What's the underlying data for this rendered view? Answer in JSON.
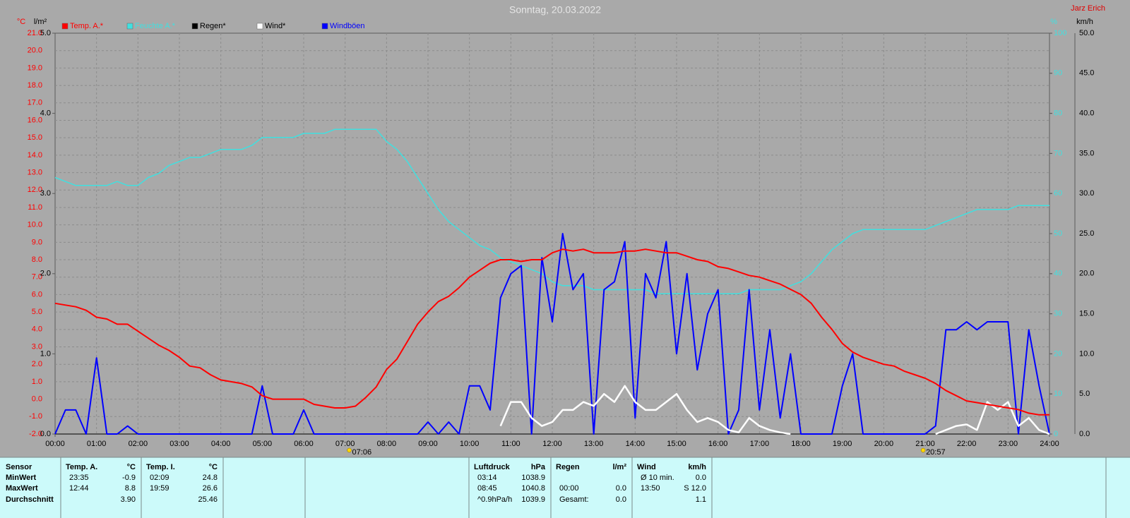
{
  "title": "Sonntag, 20.03.2022",
  "author": "Jarz Erich",
  "chart_data": {
    "type": "line",
    "xlim": [
      0,
      24
    ],
    "xticks": [
      {
        "value": 0,
        "label": "00:00"
      },
      {
        "value": 1,
        "label": "01:00"
      },
      {
        "value": 2,
        "label": "02:00"
      },
      {
        "value": 3,
        "label": "03:00"
      },
      {
        "value": 4,
        "label": "04:00"
      },
      {
        "value": 5,
        "label": "05:00"
      },
      {
        "value": 6,
        "label": "06:00"
      },
      {
        "value": 7,
        "label": "07:00"
      },
      {
        "value": 8,
        "label": "08:00"
      },
      {
        "value": 9,
        "label": "09:00"
      },
      {
        "value": 10,
        "label": "10:00"
      },
      {
        "value": 11,
        "label": "11:00"
      },
      {
        "value": 12,
        "label": "12:00"
      },
      {
        "value": 13,
        "label": "13:00"
      },
      {
        "value": 14,
        "label": "14:00"
      },
      {
        "value": 15,
        "label": "15:00"
      },
      {
        "value": 16,
        "label": "16:00"
      },
      {
        "value": 17,
        "label": "17:00"
      },
      {
        "value": 18,
        "label": "18:00"
      },
      {
        "value": 19,
        "label": "19:00"
      },
      {
        "value": 20,
        "label": "20:00"
      },
      {
        "value": 21,
        "label": "21:00"
      },
      {
        "value": 22,
        "label": "22:00"
      },
      {
        "value": 23,
        "label": "23:00"
      },
      {
        "value": 24,
        "label": "24:00"
      }
    ],
    "grid": true,
    "axes": {
      "temp": {
        "unit": "°C",
        "color": "#ff0000",
        "lim": [
          -2,
          21
        ],
        "ticks": [
          {
            "value": -2,
            "label": "-2.0"
          },
          {
            "value": -1,
            "label": "-1.0"
          },
          {
            "value": 0,
            "label": "0.0"
          },
          {
            "value": 1,
            "label": "1.0"
          },
          {
            "value": 2,
            "label": "2.0"
          },
          {
            "value": 3,
            "label": "3.0"
          },
          {
            "value": 4,
            "label": "4.0"
          },
          {
            "value": 5,
            "label": "5.0"
          },
          {
            "value": 6,
            "label": "6.0"
          },
          {
            "value": 7,
            "label": "7.0"
          },
          {
            "value": 8,
            "label": "8.0"
          },
          {
            "value": 9,
            "label": "9.0"
          },
          {
            "value": 10,
            "label": "10.0"
          },
          {
            "value": 11,
            "label": "11.0"
          },
          {
            "value": 12,
            "label": "12.0"
          },
          {
            "value": 13,
            "label": "13.0"
          },
          {
            "value": 14,
            "label": "14.0"
          },
          {
            "value": 15,
            "label": "15.0"
          },
          {
            "value": 16,
            "label": "16.0"
          },
          {
            "value": 17,
            "label": "17.0"
          },
          {
            "value": 18,
            "label": "18.0"
          },
          {
            "value": 19,
            "label": "19.0"
          },
          {
            "value": 20,
            "label": "20.0"
          },
          {
            "value": 21,
            "label": "21.0"
          }
        ]
      },
      "rain": {
        "unit": "l/m²",
        "color": "#000000",
        "lim": [
          0,
          5
        ],
        "ticks": [
          {
            "value": 0,
            "label": "0.0"
          },
          {
            "value": 1,
            "label": "1.0"
          },
          {
            "value": 2,
            "label": "2.0"
          },
          {
            "value": 3,
            "label": "3.0"
          },
          {
            "value": 4,
            "label": "4.0"
          },
          {
            "value": 5,
            "label": "5.0"
          }
        ]
      },
      "humidity": {
        "unit": "%",
        "color": "#40e0e0",
        "lim": [
          0,
          100
        ],
        "ticks": [
          0,
          10,
          20,
          30,
          40,
          50,
          60,
          70,
          80,
          90,
          100
        ]
      },
      "wind": {
        "unit": "km/h",
        "color": "#000000",
        "lim": [
          0,
          50
        ],
        "ticks": [
          {
            "value": 0,
            "label": "0.0"
          },
          {
            "value": 5,
            "label": "5.0"
          },
          {
            "value": 10,
            "label": "10.0"
          },
          {
            "value": 15,
            "label": "15.0"
          },
          {
            "value": 20,
            "label": "20.0"
          },
          {
            "value": 25,
            "label": "25.0"
          },
          {
            "value": 30,
            "label": "30.0"
          },
          {
            "value": 35,
            "label": "35.0"
          },
          {
            "value": 40,
            "label": "40.0"
          },
          {
            "value": 45,
            "label": "45.0"
          },
          {
            "value": 50,
            "label": "50.0"
          }
        ]
      }
    },
    "x": [
      0,
      0.25,
      0.5,
      0.75,
      1,
      1.25,
      1.5,
      1.75,
      2,
      2.25,
      2.5,
      2.75,
      3,
      3.25,
      3.5,
      3.75,
      4,
      4.25,
      4.5,
      4.75,
      5,
      5.25,
      5.5,
      5.75,
      6,
      6.25,
      6.5,
      6.75,
      7,
      7.25,
      7.5,
      7.75,
      8,
      8.25,
      8.5,
      8.75,
      9,
      9.25,
      9.5,
      9.75,
      10,
      10.25,
      10.5,
      10.75,
      11,
      11.25,
      11.5,
      11.75,
      12,
      12.25,
      12.5,
      12.75,
      13,
      13.25,
      13.5,
      13.75,
      14,
      14.25,
      14.5,
      14.75,
      15,
      15.25,
      15.5,
      15.75,
      16,
      16.25,
      16.5,
      16.75,
      17,
      17.25,
      17.5,
      17.75,
      18,
      18.25,
      18.5,
      18.75,
      19,
      19.25,
      19.5,
      19.75,
      20,
      20.25,
      20.5,
      20.75,
      21,
      21.25,
      21.5,
      21.75,
      22,
      22.25,
      22.5,
      22.75,
      23,
      23.25,
      23.5,
      23.75,
      24
    ],
    "series": [
      {
        "name": "Feuchte A.*",
        "color": "#40e0e0",
        "axis": "humidity",
        "values": [
          64,
          63,
          62,
          62,
          62,
          62,
          63,
          62,
          62,
          64,
          65,
          67,
          68,
          69,
          69,
          70,
          71,
          71,
          71,
          72,
          74,
          74,
          74,
          74,
          75,
          75,
          75,
          76,
          76,
          76,
          76,
          76,
          73,
          71,
          68,
          64,
          60,
          56,
          53,
          51,
          49,
          47,
          46,
          44,
          43,
          42,
          41,
          40,
          38,
          37,
          37,
          37,
          36,
          36,
          36,
          36,
          36,
          36,
          35,
          35,
          35,
          35,
          35,
          35,
          35,
          35,
          35,
          36,
          36,
          36,
          36,
          37,
          38,
          40,
          43,
          46,
          48,
          50,
          51,
          51,
          51,
          51,
          51,
          51,
          51,
          52,
          53,
          54,
          55,
          56,
          56,
          56,
          56,
          57,
          57,
          57,
          57
        ]
      },
      {
        "name": "Regen*",
        "color": "#000000",
        "axis": "rain",
        "values": [
          0,
          0,
          0,
          0,
          0,
          0,
          0,
          0,
          0,
          0,
          0,
          0,
          0,
          0,
          0,
          0,
          0,
          0,
          0,
          0,
          0,
          0,
          0,
          0,
          0,
          0,
          0,
          0,
          0,
          0,
          0,
          0,
          0,
          0,
          0,
          0,
          0,
          0,
          0,
          0,
          0,
          0,
          0,
          0,
          0,
          0,
          0,
          0,
          0,
          0,
          0,
          0,
          0,
          0,
          0,
          0,
          0,
          0,
          0,
          0,
          0,
          0,
          0,
          0,
          0,
          0,
          0,
          0,
          0,
          0,
          0,
          0,
          0,
          0,
          0,
          0,
          0,
          0,
          0,
          0,
          0,
          0,
          0,
          0,
          0,
          0,
          0,
          0,
          0,
          0,
          0,
          0,
          0,
          0,
          0,
          0,
          0
        ]
      },
      {
        "name": "Windböen",
        "color": "#0000ff",
        "axis": "wind",
        "values": [
          0,
          3,
          3,
          0,
          9.5,
          0,
          0,
          1,
          0,
          0,
          0,
          0,
          0,
          0,
          0,
          0,
          0,
          0,
          0,
          0,
          6,
          0,
          0,
          0,
          3,
          0,
          0,
          0,
          0,
          0,
          0,
          0,
          0,
          0,
          0,
          0,
          1.5,
          0,
          1.5,
          0,
          6,
          6,
          3,
          17,
          20,
          21,
          0,
          22,
          14,
          25,
          18,
          20,
          0,
          18,
          19,
          24,
          2,
          20,
          17,
          24,
          10,
          20,
          8,
          15,
          18,
          0,
          3,
          18,
          3,
          13,
          2,
          10,
          0,
          0,
          0,
          0,
          6,
          10,
          0,
          0,
          0,
          0,
          0,
          0,
          0,
          1,
          13,
          13,
          14,
          13,
          14,
          14,
          14,
          0,
          13,
          6,
          0
        ]
      },
      {
        "name": "Wind*",
        "color": "#ffffff",
        "axis": "wind",
        "values": [
          null,
          null,
          null,
          null,
          null,
          null,
          null,
          null,
          null,
          null,
          null,
          null,
          null,
          null,
          null,
          null,
          null,
          null,
          null,
          null,
          null,
          null,
          null,
          null,
          null,
          null,
          null,
          null,
          null,
          null,
          null,
          null,
          null,
          null,
          null,
          null,
          null,
          null,
          null,
          null,
          null,
          null,
          null,
          1.0,
          4.0,
          4.0,
          2.0,
          1.0,
          1.5,
          3.0,
          3.0,
          4.0,
          3.5,
          5.0,
          4.0,
          6.0,
          4.0,
          3.0,
          3.0,
          4.0,
          5.0,
          3.0,
          1.5,
          2.0,
          1.5,
          0.5,
          0.2,
          2.0,
          1.0,
          0.5,
          0.2,
          0.0,
          null,
          null,
          null,
          null,
          null,
          null,
          null,
          null,
          null,
          null,
          null,
          null,
          null,
          0.0,
          0.5,
          1.0,
          1.2,
          0.5,
          4.0,
          3.0,
          4.0,
          1.0,
          2.0,
          0.5,
          0.0
        ]
      },
      {
        "name": "Temp. A.*",
        "color": "#ff0000",
        "axis": "temp",
        "values": [
          5.5,
          5.4,
          5.3,
          5.1,
          4.7,
          4.6,
          4.3,
          4.3,
          3.9,
          3.5,
          3.1,
          2.8,
          2.4,
          1.9,
          1.8,
          1.4,
          1.1,
          1.0,
          0.9,
          0.7,
          0.2,
          0.0,
          0.0,
          0.0,
          0.0,
          -0.3,
          -0.4,
          -0.5,
          -0.5,
          -0.4,
          0.1,
          0.7,
          1.7,
          2.3,
          3.3,
          4.3,
          5.0,
          5.6,
          5.9,
          6.4,
          7.0,
          7.4,
          7.8,
          8.0,
          8.0,
          7.9,
          8.0,
          8.0,
          8.4,
          8.6,
          8.5,
          8.6,
          8.4,
          8.4,
          8.4,
          8.5,
          8.5,
          8.6,
          8.5,
          8.4,
          8.4,
          8.2,
          8.0,
          7.9,
          7.6,
          7.5,
          7.3,
          7.1,
          7.0,
          6.8,
          6.6,
          6.3,
          6.0,
          5.5,
          4.7,
          4.0,
          3.2,
          2.7,
          2.4,
          2.2,
          2.0,
          1.9,
          1.6,
          1.4,
          1.2,
          0.9,
          0.5,
          0.2,
          -0.1,
          -0.2,
          -0.3,
          -0.4,
          -0.5,
          -0.6,
          -0.8,
          -0.9,
          -0.9
        ]
      }
    ],
    "legend_order": [
      4,
      0,
      1,
      3,
      2
    ],
    "annotations": [
      {
        "x": 7.1,
        "label": "07:06"
      },
      {
        "x": 20.95,
        "label": "20:57"
      }
    ]
  },
  "stats": {
    "sensor": {
      "header": "Sensor",
      "rows": [
        "MinWert",
        "MaxWert",
        "Durchschnitt"
      ]
    },
    "temp_a": {
      "header": "Temp. A.",
      "unit": "°C",
      "rows": [
        {
          "time": "23:35",
          "value": "-0.9"
        },
        {
          "time": "12:44",
          "value": "8.8"
        },
        {
          "value": "3.90"
        }
      ]
    },
    "temp_i": {
      "header": "Temp. I.",
      "unit": "°C",
      "rows": [
        {
          "time": "02:09",
          "value": "24.8"
        },
        {
          "time": "19:59",
          "value": "26.6"
        },
        {
          "value": "25.46"
        }
      ]
    },
    "luftdruck": {
      "header": "Luftdruck",
      "unit": "hPa",
      "rows": [
        {
          "time": "03:14",
          "value": "1038.9"
        },
        {
          "time": "08:45",
          "value": "1040.8"
        },
        {
          "time": "^0.9hPa/h",
          "value": "1039.9"
        }
      ]
    },
    "regen": {
      "header": "Regen",
      "unit": "l/m²",
      "rows": [
        {
          "time": "00:00",
          "value": "0.0"
        },
        {
          "time": "Gesamt:",
          "value": "0.0"
        }
      ]
    },
    "wind": {
      "header": "Wind",
      "unit": "km/h",
      "rows": [
        {
          "time": "Ø 10 min.",
          "value": "0.0"
        },
        {
          "time": "13:50",
          "value": "S 12.0"
        },
        {
          "value": "1.1"
        }
      ]
    }
  }
}
